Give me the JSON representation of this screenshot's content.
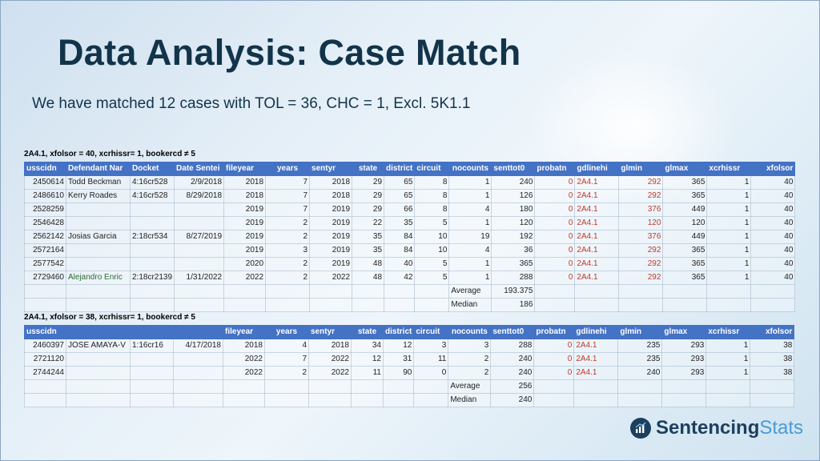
{
  "title": "Data Analysis: Case Match",
  "subtitle": "We have matched 12 cases with TOL = 36, CHC = 1, Excl. 5K1.1",
  "table1": {
    "label": "2A4.1, xfolsor = 40, xcrhissr= 1, bookercd ≠ 5",
    "headers": [
      "usscidn",
      "Defendant Nar",
      "Docket",
      "Date Sentei",
      "fileyear",
      "years",
      "sentyr",
      "state",
      "district",
      "circuit",
      "nocounts",
      "senttot0",
      "probatn",
      "gdlinehi",
      "glmin",
      "glmax",
      "xcrhissr",
      "xfolsor"
    ],
    "rows": [
      [
        "2450614",
        "Todd Beckman",
        "4:16cr528",
        "2/9/2018",
        "2018",
        "7",
        "2018",
        "29",
        "65",
        "8",
        "1",
        "240",
        "0",
        "2A4.1",
        "292",
        "365",
        "1",
        "40"
      ],
      [
        "2486610",
        "Kerry Roades",
        "4:16cr528",
        "8/29/2018",
        "2018",
        "7",
        "2018",
        "29",
        "65",
        "8",
        "1",
        "126",
        "0",
        "2A4.1",
        "292",
        "365",
        "1",
        "40"
      ],
      [
        "2528259",
        "",
        "",
        "",
        "2019",
        "7",
        "2019",
        "29",
        "66",
        "8",
        "4",
        "180",
        "0",
        "2A4.1",
        "376",
        "449",
        "1",
        "40"
      ],
      [
        "2546428",
        "",
        "",
        "",
        "2019",
        "2",
        "2019",
        "22",
        "35",
        "5",
        "1",
        "120",
        "0",
        "2A4.1",
        "120",
        "120",
        "1",
        "40"
      ],
      [
        "2562142",
        "Josias Garcia",
        "2:18cr534",
        "8/27/2019",
        "2019",
        "2",
        "2019",
        "35",
        "84",
        "10",
        "19",
        "192",
        "0",
        "2A4.1",
        "376",
        "449",
        "1",
        "40"
      ],
      [
        "2572164",
        "",
        "",
        "",
        "2019",
        "3",
        "2019",
        "35",
        "84",
        "10",
        "4",
        "36",
        "0",
        "2A4.1",
        "292",
        "365",
        "1",
        "40"
      ],
      [
        "2577542",
        "",
        "",
        "",
        "2020",
        "2",
        "2019",
        "48",
        "40",
        "5",
        "1",
        "365",
        "0",
        "2A4.1",
        "292",
        "365",
        "1",
        "40"
      ],
      [
        "2729460",
        "Alejandro Enric",
        "2:18cr2139",
        "1/31/2022",
        "2022",
        "2",
        "2022",
        "48",
        "42",
        "5",
        "1",
        "288",
        "0",
        "2A4.1",
        "292",
        "365",
        "1",
        "40"
      ]
    ],
    "average_label": "Average",
    "average_value": "193.375",
    "median_label": "Median",
    "median_value": "186"
  },
  "table2": {
    "label": "2A4.1, xfolsor = 38, xcrhissr= 1, bookercd ≠ 5",
    "headers": [
      "usscidn",
      "",
      "",
      "",
      "fileyear",
      "years",
      "sentyr",
      "state",
      "district",
      "circuit",
      "nocounts",
      "senttot0",
      "probatn",
      "gdlinehi",
      "glmin",
      "glmax",
      "xcrhissr",
      "xfolsor"
    ],
    "rows": [
      [
        "2460397",
        "JOSE AMAYA-V",
        "1:16cr16",
        "4/17/2018",
        "2018",
        "4",
        "2018",
        "34",
        "12",
        "3",
        "3",
        "288",
        "0",
        "2A4.1",
        "235",
        "293",
        "1",
        "38"
      ],
      [
        "2721120",
        "",
        "",
        "",
        "2022",
        "7",
        "2022",
        "12",
        "31",
        "11",
        "2",
        "240",
        "0",
        "2A4.1",
        "235",
        "293",
        "1",
        "38"
      ],
      [
        "2744244",
        "",
        "",
        "",
        "2022",
        "2",
        "2022",
        "11",
        "90",
        "0",
        "2",
        "240",
        "0",
        "2A4.1",
        "240",
        "293",
        "1",
        "38"
      ]
    ],
    "average_label": "Average",
    "average_value": "256",
    "median_label": "Median",
    "median_value": "240"
  },
  "logo": {
    "part1": "Sentencing",
    "part2": "Stats",
    "icon": "gavel-chart-icon"
  }
}
